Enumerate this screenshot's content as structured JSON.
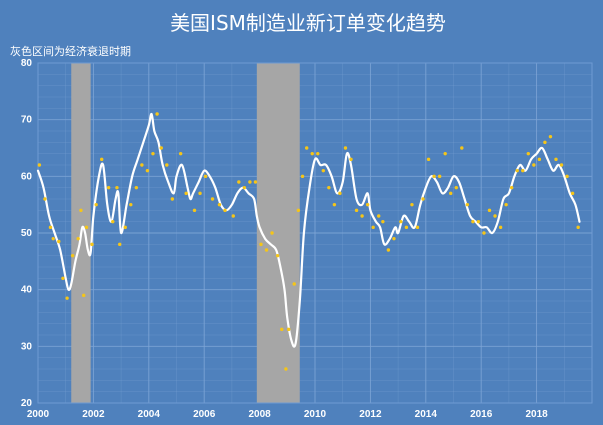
{
  "colors": {
    "background": "#4f81bd",
    "plot_border": "#6f9bd3",
    "grid": "#7ea5d6",
    "recession_band": "#a6a6a6",
    "line": "#ffffff",
    "points": "#f5c518",
    "text": "#ffffff"
  },
  "chart_data": {
    "type": "line",
    "title": "美国ISM制造业新订单变化趋势",
    "subtitle": "灰色区间为经济衰退时期",
    "xlabel": "",
    "ylabel": "",
    "xlim": [
      2000,
      2020
    ],
    "ylim": [
      20,
      80
    ],
    "x_tick_labels": [
      "2000",
      "2002",
      "2004",
      "2006",
      "2008",
      "2010",
      "2012",
      "2014",
      "2016",
      "2018"
    ],
    "y_tick_labels": [
      "20",
      "30",
      "40",
      "50",
      "60",
      "70",
      "80"
    ],
    "grid": true,
    "recessions": [
      {
        "start": 2001.2,
        "end": 2001.9
      },
      {
        "start": 2007.9,
        "end": 2009.45
      }
    ],
    "series": [
      {
        "kind": "line",
        "style": "smoothed",
        "x": [
          2000.0,
          2000.2,
          2000.4,
          2000.6,
          2000.8,
          2001.0,
          2001.1,
          2001.2,
          2001.35,
          2001.5,
          2001.6,
          2001.7,
          2001.8,
          2001.9,
          2002.0,
          2002.2,
          2002.35,
          2002.5,
          2002.65,
          2002.8,
          2002.9,
          2003.0,
          2003.2,
          2003.4,
          2003.6,
          2003.8,
          2004.0,
          2004.1,
          2004.2,
          2004.35,
          2004.5,
          2004.7,
          2004.9,
          2005.0,
          2005.2,
          2005.4,
          2005.5,
          2005.6,
          2005.8,
          2006.0,
          2006.2,
          2006.4,
          2006.6,
          2006.8,
          2007.0,
          2007.2,
          2007.4,
          2007.6,
          2007.8,
          2007.9,
          2008.0,
          2008.2,
          2008.4,
          2008.6,
          2008.75,
          2008.9,
          2009.0,
          2009.15,
          2009.3,
          2009.45,
          2009.6,
          2009.8,
          2010.0,
          2010.2,
          2010.4,
          2010.6,
          2010.8,
          2011.0,
          2011.15,
          2011.3,
          2011.5,
          2011.7,
          2011.9,
          2012.0,
          2012.2,
          2012.35,
          2012.5,
          2012.7,
          2012.9,
          2013.0,
          2013.2,
          2013.4,
          2013.6,
          2013.8,
          2014.0,
          2014.2,
          2014.4,
          2014.6,
          2014.8,
          2015.0,
          2015.2,
          2015.4,
          2015.6,
          2015.8,
          2016.0,
          2016.2,
          2016.4,
          2016.6,
          2016.8,
          2017.0,
          2017.2,
          2017.4,
          2017.6,
          2017.8,
          2018.0,
          2018.2,
          2018.4,
          2018.6,
          2018.8,
          2019.0,
          2019.2,
          2019.4,
          2019.55
        ],
        "y": [
          61,
          58,
          53,
          50,
          47,
          42,
          40,
          41,
          45,
          48,
          51,
          50,
          47,
          46.5,
          53,
          60,
          62,
          55,
          52,
          56,
          57,
          50,
          55,
          60,
          63,
          66,
          69,
          71,
          68,
          66,
          62,
          59,
          57,
          60,
          62,
          58,
          56,
          57,
          59,
          61,
          60,
          58,
          55,
          54,
          55,
          57,
          58,
          57,
          56,
          53,
          51,
          49,
          48,
          47,
          44,
          40,
          35,
          31,
          30.5,
          38,
          50,
          58,
          63,
          62,
          62,
          60,
          57,
          59,
          64,
          62,
          56,
          55,
          57,
          54,
          52,
          51,
          48,
          49,
          51,
          50,
          53,
          52,
          51,
          55,
          58,
          60,
          59,
          57,
          58,
          60,
          59,
          56,
          53,
          52,
          51,
          51,
          50,
          52,
          56,
          57,
          60,
          62,
          61,
          63,
          64,
          65,
          63,
          61,
          62,
          60,
          57,
          55,
          52
        ]
      },
      {
        "kind": "scatter",
        "x": [
          2000.05,
          2000.25,
          2000.45,
          2000.55,
          2000.75,
          2000.9,
          2001.05,
          2001.25,
          2001.45,
          2001.55,
          2001.65,
          2001.75,
          2001.95,
          2002.1,
          2002.3,
          2002.55,
          2002.7,
          2002.85,
          2002.95,
          2003.15,
          2003.35,
          2003.55,
          2003.75,
          2003.95,
          2004.15,
          2004.3,
          2004.45,
          2004.65,
          2004.85,
          2005.15,
          2005.35,
          2005.65,
          2005.85,
          2006.05,
          2006.3,
          2006.55,
          2006.75,
          2007.05,
          2007.25,
          2007.45,
          2007.65,
          2007.85,
          2008.05,
          2008.25,
          2008.45,
          2008.65,
          2008.8,
          2008.95,
          2009.05,
          2009.25,
          2009.4,
          2009.55,
          2009.7,
          2009.9,
          2010.1,
          2010.3,
          2010.5,
          2010.7,
          2010.9,
          2011.1,
          2011.3,
          2011.5,
          2011.7,
          2011.9,
          2012.1,
          2012.3,
          2012.45,
          2012.65,
          2012.85,
          2013.1,
          2013.3,
          2013.5,
          2013.7,
          2013.9,
          2014.1,
          2014.3,
          2014.5,
          2014.7,
          2014.9,
          2015.1,
          2015.3,
          2015.5,
          2015.7,
          2015.9,
          2016.1,
          2016.3,
          2016.5,
          2016.7,
          2016.9,
          2017.1,
          2017.3,
          2017.5,
          2017.7,
          2017.9,
          2018.1,
          2018.3,
          2018.5,
          2018.7,
          2018.9,
          2019.1,
          2019.3,
          2019.5
        ],
        "y": [
          62,
          56,
          51,
          49,
          48.5,
          42,
          38.5,
          46,
          49,
          54,
          39,
          51,
          48,
          55,
          63,
          58,
          52,
          58,
          48,
          51,
          55,
          58,
          62,
          61,
          64,
          71,
          65,
          62,
          56,
          64,
          57,
          54,
          57,
          60,
          56,
          55,
          54,
          53,
          59,
          58,
          59,
          59,
          48,
          47,
          50,
          46,
          33,
          26,
          33,
          41,
          54,
          60,
          65,
          64,
          64,
          61,
          58,
          55,
          57,
          65,
          63,
          54,
          53,
          55,
          51,
          53,
          52,
          47,
          49,
          52,
          51,
          55,
          51,
          56,
          63,
          60,
          60,
          64,
          57,
          58,
          65,
          55,
          52,
          52,
          50,
          54,
          53,
          51,
          55,
          58,
          61,
          61,
          64,
          62,
          63,
          66,
          67,
          63,
          62,
          60,
          57,
          51
        ]
      }
    ]
  }
}
